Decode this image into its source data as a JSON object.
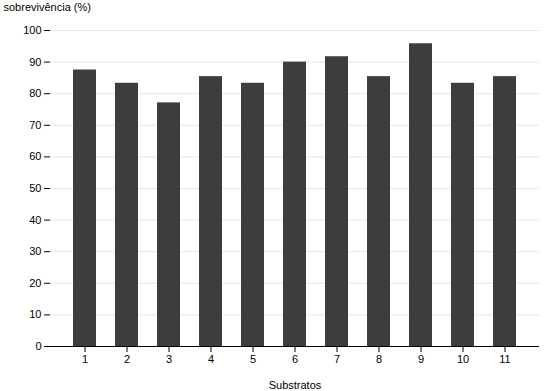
{
  "chart_data": {
    "type": "bar",
    "categories": [
      "1",
      "2",
      "3",
      "4",
      "5",
      "6",
      "7",
      "8",
      "9",
      "10",
      "11"
    ],
    "values": [
      87.5,
      83.3,
      77.1,
      85.4,
      83.3,
      90.0,
      91.7,
      85.4,
      95.8,
      83.3,
      85.4
    ],
    "color": "#3d3d3d",
    "xlabel": "Substratos",
    "ylabel": "sobrevivência (%)",
    "ylim": [
      0,
      100
    ],
    "yticks": [
      0,
      10,
      20,
      30,
      40,
      50,
      60,
      70,
      80,
      90,
      100
    ],
    "grid": true
  }
}
